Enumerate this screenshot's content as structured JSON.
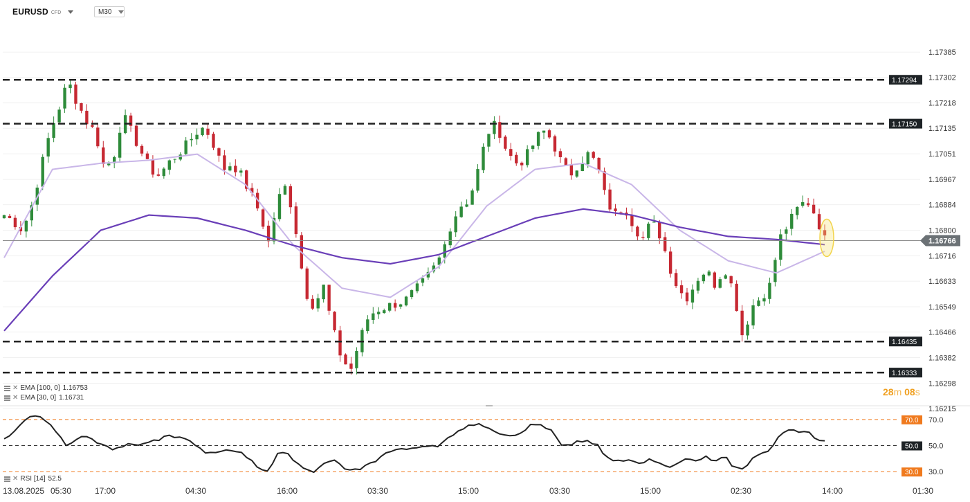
{
  "header": {
    "symbol": "EURUSD",
    "symbol_type": "CFD",
    "timeframe": "M30"
  },
  "indicators": {
    "ema100_label": "EMA [100, 0]",
    "ema100_value": "1.16753",
    "ema30_label": "EMA [30, 0]",
    "ema30_value": "1.16731",
    "rsi_label": "RSI [14]",
    "rsi_value": "52.5"
  },
  "countdown": {
    "minutes": "28",
    "minutes_unit": "m",
    "seconds": "08",
    "seconds_unit": "s"
  },
  "colors": {
    "bull": "#2e8b3a",
    "bear": "#c62832",
    "ema100": "#6a3fb8",
    "ema30": "#c9b6e8",
    "level_line": "#222222",
    "rsi_line": "#222222",
    "rsi_band": "#f07a1e",
    "current_price_label": "#6b7175",
    "highlight": "#f2d44c"
  },
  "chart_data": [
    {
      "type": "candlestick",
      "name": "EURUSD M30 price",
      "y_ticks": [
        1.17385,
        1.17302,
        1.17218,
        1.17135,
        1.17051,
        1.16967,
        1.16884,
        1.168,
        1.16716,
        1.16633,
        1.16549,
        1.16466,
        1.16382,
        1.16298,
        1.16215
      ],
      "y_tick_labels": [
        "1.17385",
        "1.17302",
        "1.17218",
        "1.17135",
        "1.17051",
        "1.16967",
        "1.16884",
        "1.16800",
        "1.16716",
        "1.16633",
        "1.16549",
        "1.16466",
        "1.16382",
        "1.16298",
        "1.16215"
      ],
      "ylim": [
        1.16215,
        1.17465
      ],
      "x_tick_labels": [
        "13.08.2025",
        "05:30",
        "17:00",
        "04:30",
        "16:00",
        "03:30",
        "15:00",
        "03:30",
        "15:00",
        "02:30",
        "14:00",
        "01:30"
      ],
      "current_price": 1.16766,
      "current_price_label": "1.16766",
      "levels": [
        {
          "label": "1.17294",
          "value": 1.17294
        },
        {
          "label": "1.17150",
          "value": 1.1715
        },
        {
          "label": "1.16435",
          "value": 1.16435
        },
        {
          "label": "1.16333",
          "value": 1.16333
        }
      ],
      "key_points_close": [
        1.1685,
        1.1683,
        1.168,
        1.1688,
        1.17,
        1.1712,
        1.172,
        1.1729,
        1.1722,
        1.1716,
        1.1712,
        1.17,
        1.1704,
        1.1718,
        1.1712,
        1.1706,
        1.17,
        1.1698,
        1.1702,
        1.1705,
        1.1708,
        1.1712,
        1.1714,
        1.1708,
        1.17,
        1.1702,
        1.1698,
        1.1692,
        1.1686,
        1.1676,
        1.169,
        1.1695,
        1.168,
        1.166,
        1.1655,
        1.1662,
        1.1648,
        1.1638,
        1.1634,
        1.1644,
        1.1652,
        1.1654,
        1.1655,
        1.1656,
        1.1657,
        1.166,
        1.1663,
        1.1667,
        1.1672,
        1.1682,
        1.1688,
        1.169,
        1.17,
        1.1712,
        1.1715,
        1.1707,
        1.1702,
        1.1703,
        1.1708,
        1.1713,
        1.171,
        1.1703,
        1.1698,
        1.1702,
        1.1705,
        1.1702,
        1.169,
        1.1685,
        1.1688,
        1.1682,
        1.1677,
        1.1683,
        1.1678,
        1.1668,
        1.166,
        1.1658,
        1.1664,
        1.1667,
        1.1662,
        1.1668,
        1.166,
        1.1645,
        1.1655,
        1.1658,
        1.1662,
        1.1677,
        1.1682,
        1.1687,
        1.169,
        1.1685,
        1.1677
      ],
      "ema100_points": [
        1.1647,
        1.1665,
        1.168,
        1.1685,
        1.1684,
        1.168,
        1.1675,
        1.1671,
        1.1669,
        1.1672,
        1.1678,
        1.1684,
        1.1687,
        1.1685,
        1.1681,
        1.1678,
        1.1677,
        1.16753
      ],
      "ema30_points": [
        1.1671,
        1.17,
        1.1702,
        1.1703,
        1.1705,
        1.1695,
        1.1675,
        1.1661,
        1.1658,
        1.1668,
        1.1688,
        1.17,
        1.1702,
        1.1695,
        1.168,
        1.167,
        1.1666,
        1.16731
      ]
    },
    {
      "type": "line",
      "name": "RSI [14]",
      "ylim": [
        20,
        80
      ],
      "levels": [
        {
          "label": "70.0",
          "value": 70.0
        },
        {
          "label": "50.0",
          "value": 50.0
        },
        {
          "label": "30.0",
          "value": 30.0
        }
      ],
      "y_tick_labels": [
        "70.0",
        "50.0",
        "30.0"
      ],
      "values": [
        54,
        60,
        68,
        73,
        72,
        66,
        58,
        50,
        55,
        57,
        54,
        50,
        48,
        49,
        51,
        50,
        53,
        56,
        58,
        57,
        55,
        50,
        46,
        44,
        47,
        46,
        45,
        38,
        32,
        30,
        44,
        45,
        36,
        32,
        30,
        36,
        40,
        35,
        31,
        33,
        36,
        40,
        45,
        47,
        48,
        48,
        49,
        50,
        52,
        58,
        62,
        64,
        67,
        64,
        60,
        58,
        57,
        61,
        66,
        66,
        62,
        52,
        50,
        52,
        54,
        52,
        40,
        38,
        40,
        38,
        36,
        41,
        36,
        33,
        37,
        40,
        38,
        42,
        36,
        43,
        34,
        32,
        40,
        44,
        46,
        58,
        62,
        60,
        61,
        55,
        52.5
      ]
    }
  ]
}
